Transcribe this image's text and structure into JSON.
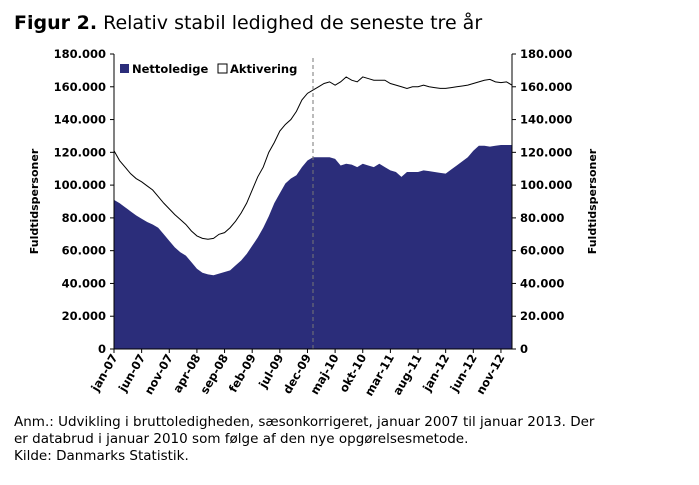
{
  "figure": {
    "label": "Figur 2.",
    "title": "Relativ stabil ledighed de seneste tre år"
  },
  "notes": {
    "line1": "Anm.: Udvikling i bruttoledigheden, sæsonkorrigeret, januar 2007 til januar 2013. Der",
    "line2": "er databrud i januar 2010 som følge af den nye opgørelsesmetode.",
    "line3": "Kilde: Danmarks Statistik."
  },
  "chart_data": {
    "type": "area",
    "ylabel_left": "Fuldtidspersoner",
    "ylabel_right": "Fuldtidspersoner",
    "ylim": [
      0,
      180000
    ],
    "yticks": [
      0,
      20000,
      40000,
      60000,
      80000,
      100000,
      120000,
      140000,
      160000,
      180000
    ],
    "ytick_labels": [
      "0",
      "20.000",
      "40.000",
      "60.000",
      "80.000",
      "100.000",
      "120.000",
      "140.000",
      "160.000",
      "180.000"
    ],
    "xtick_labels": [
      "jan-07",
      "jun-07",
      "nov-07",
      "apr-08",
      "sep-08",
      "feb-09",
      "jul-09",
      "dec-09",
      "maj-10",
      "okt-10",
      "mar-11",
      "aug-11",
      "jan-12",
      "jun-12",
      "nov-12"
    ],
    "xtick_month_index": [
      0,
      5,
      10,
      15,
      20,
      25,
      30,
      35,
      40,
      45,
      50,
      55,
      60,
      65,
      70
    ],
    "n_months": 73,
    "break_month_index": 36,
    "legend_position": "top-left",
    "colors": {
      "nettoledige": "#2b2d7a",
      "aktivering": "#ffffff",
      "line": "#000000",
      "axis": "#000000",
      "break_line": "#777777"
    },
    "series": [
      {
        "name": "Nettoledige",
        "style": "filled-area",
        "values": [
          91000,
          89000,
          86500,
          84000,
          81500,
          79500,
          77500,
          76000,
          74000,
          70000,
          66000,
          62000,
          59000,
          57000,
          53000,
          49000,
          46500,
          45500,
          45000,
          46000,
          47000,
          48000,
          51000,
          54000,
          58000,
          63000,
          68000,
          74000,
          81000,
          89000,
          95000,
          101000,
          104000,
          106000,
          111000,
          115000,
          117000,
          117000,
          117000,
          117000,
          116000,
          112000,
          113000,
          112500,
          111000,
          113000,
          112000,
          111000,
          113000,
          111000,
          109000,
          108000,
          105000,
          108000,
          108000,
          108000,
          109000,
          108500,
          108000,
          107500,
          107000,
          109500,
          112000,
          114500,
          117000,
          121000,
          124000,
          124000,
          123500,
          124000,
          124500,
          124500,
          124500
        ]
      },
      {
        "name": "Aktivering",
        "style": "white-band-above",
        "values": [
          121000,
          115000,
          111000,
          107000,
          104000,
          102000,
          99500,
          97000,
          93000,
          89000,
          85500,
          82000,
          79000,
          76000,
          72000,
          69000,
          67500,
          67000,
          67500,
          70000,
          71000,
          74000,
          78000,
          83000,
          89000,
          97000,
          105000,
          111000,
          120000,
          126000,
          133000,
          137000,
          140000,
          145000,
          152000,
          156000,
          158000,
          160000,
          162000,
          163000,
          161000,
          163000,
          166000,
          164000,
          163000,
          166000,
          165000,
          164000,
          164000,
          164000,
          162000,
          161000,
          160000,
          159000,
          160000,
          160000,
          161000,
          160000,
          159500,
          159000,
          159000,
          159500,
          160000,
          160500,
          161000,
          162000,
          163000,
          164000,
          164500,
          163000,
          162500,
          163000,
          161000
        ]
      }
    ]
  }
}
